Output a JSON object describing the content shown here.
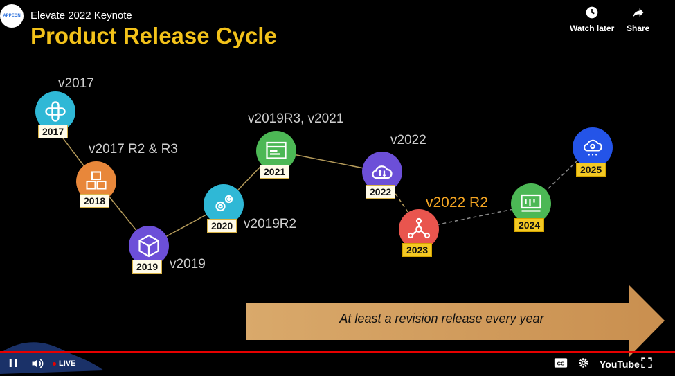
{
  "header": {
    "channel_logo_text": "APPEON",
    "video_title": "Elevate 2022 Keynote",
    "watch_later_label": "Watch later",
    "share_label": "Share"
  },
  "slide": {
    "title": "Product Release Cycle",
    "arrow_text": "At least a revision release every year",
    "nodes": [
      {
        "year": "2017",
        "label": "v2017",
        "color": "#2fb8d6"
      },
      {
        "year": "2018",
        "label": "v2017 R2 & R3",
        "color": "#e8873a"
      },
      {
        "year": "2019",
        "label": "v2019",
        "color": "#6c4fd8"
      },
      {
        "year": "2020",
        "label": "v2019R2",
        "color": "#2fb8d6"
      },
      {
        "year": "2021",
        "label": "v2019R3, v2021",
        "color": "#4cb855"
      },
      {
        "year": "2022",
        "label": "v2022",
        "color": "#6c4fd8"
      },
      {
        "year": "2023",
        "label": "v2022 R2",
        "color": "#e9554e"
      },
      {
        "year": "2024",
        "label": "",
        "color": "#4cb855"
      },
      {
        "year": "2025",
        "label": "",
        "color": "#2454e8"
      }
    ]
  },
  "player": {
    "live_label": "LIVE",
    "youtube_label": "YouTube",
    "progress_color": "#e60000"
  }
}
